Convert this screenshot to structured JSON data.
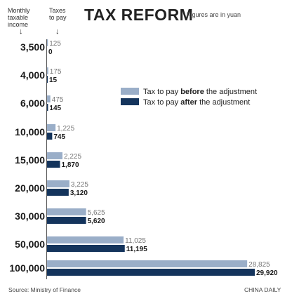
{
  "header": {
    "income_label": "Monthly taxable income",
    "taxes_label": "Taxes to pay",
    "arrow": "↓"
  },
  "title": "TAX REFORM",
  "subtitle": "Figures are in yuan",
  "legend": {
    "before_prefix": "Tax to pay ",
    "before_bold": "before",
    "before_suffix": " the adjustment",
    "after_prefix": "Tax to pay ",
    "after_bold": "after",
    "after_suffix": " the adjustment"
  },
  "footer": {
    "source": "Source: Ministry of Finance",
    "credit": "CHINA DAILY"
  },
  "colors": {
    "before": "#9aaec8",
    "after": "#14345c",
    "label_before": "#777777",
    "label_after": "#1a1a1a"
  },
  "chart_data": {
    "type": "bar",
    "orientation": "horizontal",
    "categories": [
      "3,500",
      "4,000",
      "6,000",
      "10,000",
      "15,000",
      "20,000",
      "30,000",
      "50,000",
      "100,000"
    ],
    "series": [
      {
        "name": "Tax to pay before the adjustment",
        "values": [
          125,
          175,
          475,
          1225,
          2225,
          3225,
          5625,
          11025,
          28825
        ],
        "labels": [
          "125",
          "175",
          "475",
          "1,225",
          "2,225",
          "3,225",
          "5,625",
          "11,025",
          "28,825"
        ]
      },
      {
        "name": "Tax to pay after the adjustment",
        "values": [
          0,
          15,
          145,
          745,
          1870,
          3120,
          5620,
          11195,
          29920
        ],
        "labels": [
          "0",
          "15",
          "145",
          "745",
          "1,870",
          "3,120",
          "5,620",
          "11,195",
          "29,920"
        ]
      }
    ],
    "xlim": [
      0,
      29920
    ]
  }
}
